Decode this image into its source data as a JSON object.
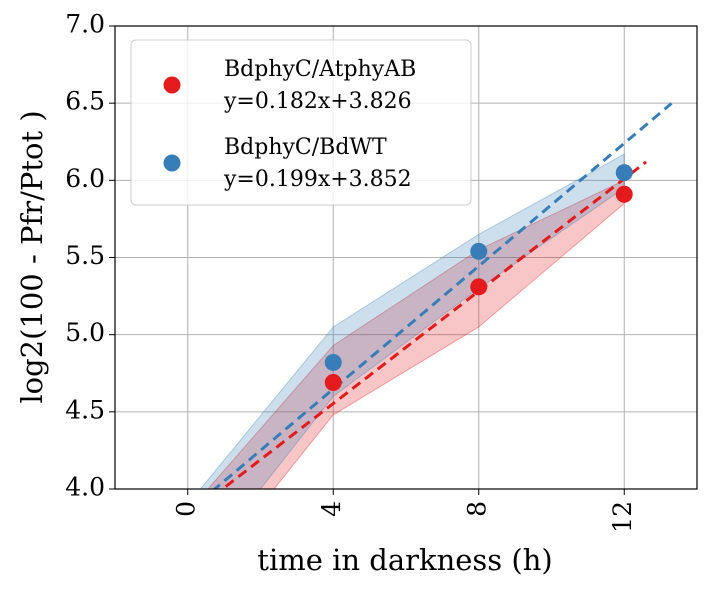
{
  "chart_data": {
    "type": "scatter",
    "xlabel": "time in darkness (h)",
    "ylabel": "log2(100 - Pfr/Ptot )",
    "xlim": [
      -2,
      14
    ],
    "ylim": [
      4.0,
      7.0
    ],
    "xticks": [
      0,
      4,
      8,
      12
    ],
    "yticks": [
      {
        "value": 4.0,
        "label": "4.0"
      },
      {
        "value": 4.5,
        "label": "4.5"
      },
      {
        "value": 5.0,
        "label": "5.0"
      },
      {
        "value": 5.5,
        "label": "5.5"
      },
      {
        "value": 6.0,
        "label": "6.0"
      },
      {
        "value": 6.5,
        "label": "6.5"
      },
      {
        "value": 7.0,
        "label": "7.0"
      }
    ],
    "grid": true,
    "legend": "upper left",
    "series": [
      {
        "name": "BdphyC/AtphyAB",
        "fit_label": "y=0.182x+3.826",
        "color": "#e41a1c",
        "x": [
          4,
          8,
          12
        ],
        "values": [
          4.69,
          5.31,
          5.91
        ],
        "band_x": [
          0,
          4,
          8,
          12
        ],
        "band_lower": [
          3.3,
          4.48,
          5.05,
          5.85
        ],
        "band_upper": [
          3.85,
          4.93,
          5.55,
          6.0
        ],
        "slope": 0.182,
        "intercept": 3.826,
        "fit_x": [
          0,
          12.6
        ]
      },
      {
        "name": "BdphyC/BdWT",
        "fit_label": "y=0.199x+3.852",
        "color": "#377eb8",
        "x": [
          4,
          8,
          12
        ],
        "values": [
          4.82,
          5.54,
          6.05
        ],
        "band_x": [
          0,
          4,
          8,
          12
        ],
        "band_lower": [
          3.4,
          4.6,
          5.3,
          5.95
        ],
        "band_upper": [
          3.9,
          5.05,
          5.65,
          6.17
        ],
        "slope": 0.199,
        "intercept": 3.852,
        "fit_x": [
          0,
          13.3
        ]
      }
    ]
  }
}
